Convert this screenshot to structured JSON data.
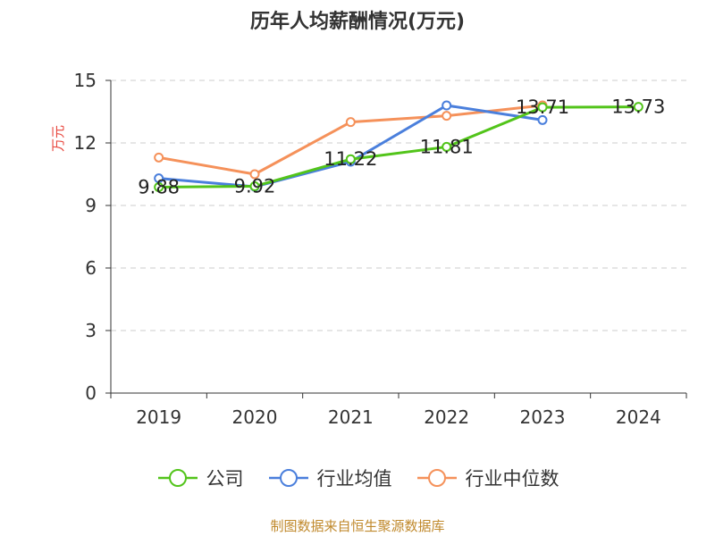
{
  "chart_data": {
    "type": "line",
    "title": "历年人均薪酬情况(万元)",
    "ylabel": "万元",
    "xlabel": "",
    "categories": [
      "2019",
      "2020",
      "2021",
      "2022",
      "2023",
      "2024"
    ],
    "ylim": [
      0,
      15
    ],
    "yticks": [
      "0",
      "3",
      "6",
      "9",
      "12",
      "15"
    ],
    "grid": true,
    "legend_position": "bottom",
    "series": [
      {
        "name": "公司",
        "color": "#52c41a",
        "values": [
          9.88,
          9.92,
          11.22,
          11.81,
          13.71,
          13.73
        ],
        "labels": [
          "9.88",
          "9.92",
          "11.22",
          "11.81",
          "13.71",
          "13.73"
        ]
      },
      {
        "name": "行业均值",
        "color": "#4a7fdc",
        "values": [
          10.3,
          9.9,
          11.1,
          13.8,
          13.1,
          null
        ]
      },
      {
        "name": "行业中位数",
        "color": "#f5915a",
        "values": [
          11.3,
          10.5,
          13.0,
          13.3,
          13.8,
          null
        ]
      }
    ]
  },
  "source": "制图数据来自恒生聚源数据库"
}
